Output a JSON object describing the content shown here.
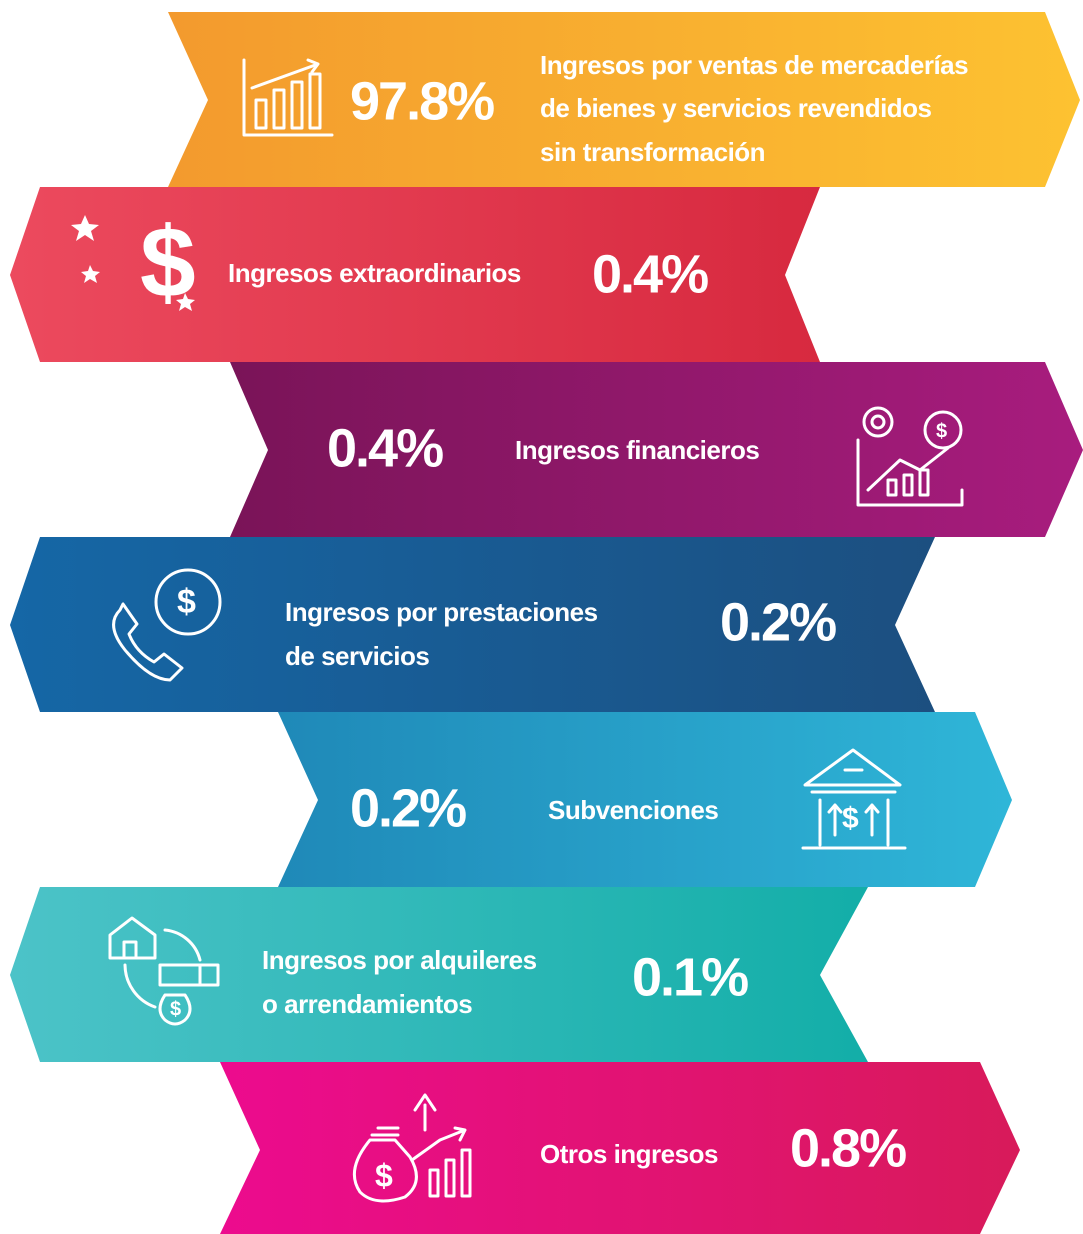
{
  "items": [
    {
      "value": "97.8%",
      "label_lines": [
        "Ingresos por ventas de mercaderías",
        "de bienes y servicios revendidos",
        "sin transformación"
      ]
    },
    {
      "value": "0.4%",
      "label_lines": [
        "Ingresos extraordinarios"
      ]
    },
    {
      "value": "0.4%",
      "label_lines": [
        "Ingresos financieros"
      ]
    },
    {
      "value": "0.2%",
      "label_lines": [
        "Ingresos por prestaciones",
        "de servicios"
      ]
    },
    {
      "value": "0.2%",
      "label_lines": [
        "Subvenciones"
      ]
    },
    {
      "value": "0.1%",
      "label_lines": [
        "Ingresos por alquileres",
        "o arrendamientos"
      ]
    },
    {
      "value": "0.8%",
      "label_lines": [
        "Otros ingresos"
      ]
    }
  ]
}
